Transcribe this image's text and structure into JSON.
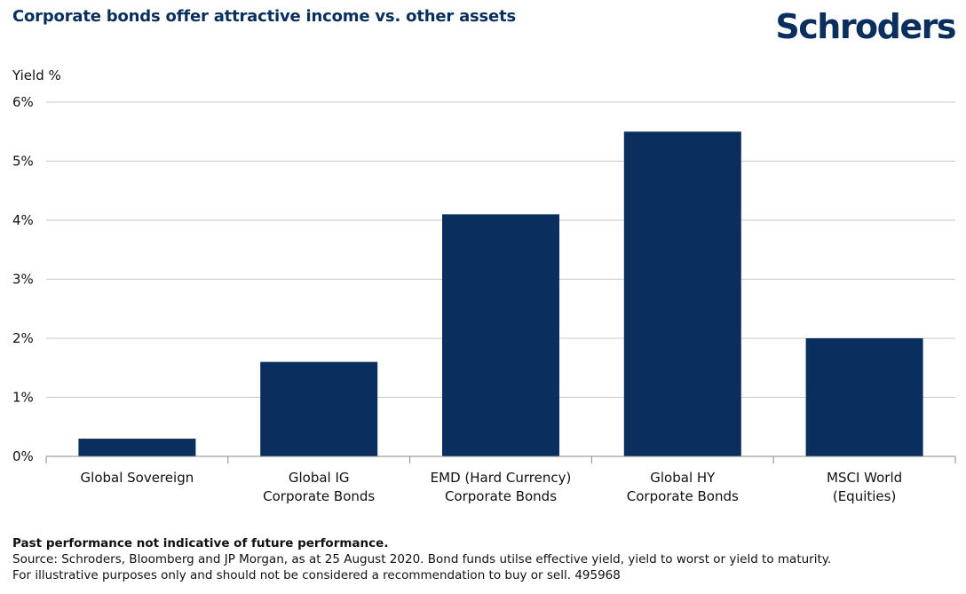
{
  "header": {
    "title": "Corporate bonds offer attractive income vs. other assets",
    "logo_text": "Schroders"
  },
  "chart_data": {
    "type": "bar",
    "ylabel": "Yield %",
    "xlabel": "",
    "ylim": [
      0,
      6
    ],
    "yticks": [
      0,
      1,
      2,
      3,
      4,
      5,
      6
    ],
    "ytick_labels": [
      "0%",
      "1%",
      "2%",
      "3%",
      "4%",
      "5%",
      "6%"
    ],
    "categories": [
      "Global Sovereign",
      "Global IG\nCorporate Bonds",
      "EMD (Hard Currency)\nCorporate Bonds",
      "Global HY\nCorporate Bonds",
      "MSCI World\n(Equities)"
    ],
    "values": [
      0.3,
      1.6,
      4.1,
      5.5,
      2.0
    ],
    "grid": true,
    "legend": "none",
    "bar_color": "#0a2f5e"
  },
  "footnotes": {
    "disclaimer": "Past performance not indicative of future performance.",
    "source": "Source: Schroders, Bloomberg and JP Morgan, as at 25 August 2020. Bond funds utilse effective yield, yield to worst or yield to maturity.",
    "illustrative": "For illustrative purposes only and should not be considered a recommendation to buy or sell. 495968"
  }
}
